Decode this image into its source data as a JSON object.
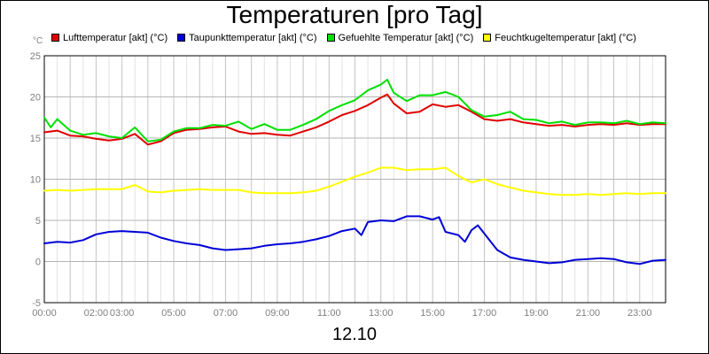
{
  "chart_data": {
    "type": "line",
    "title": "Temperaturen [pro Tag]",
    "xlabel": "12.10",
    "ylabel": "°C",
    "xlim": [
      "00:00",
      "24:00"
    ],
    "ylim": [
      -5,
      25
    ],
    "grid": true,
    "legend_position": "top",
    "x_tick_labels": [
      "00:00",
      "02:00",
      "03:00",
      "05:00",
      "07:00",
      "09:00",
      "11:00",
      "13:00",
      "15:00",
      "17:00",
      "19:00",
      "21:00",
      "23:00"
    ],
    "y_tick_labels": [
      "25",
      "20",
      "15",
      "10",
      "5",
      "0",
      "-5"
    ],
    "x_ticks": [
      0,
      2,
      3,
      5,
      7,
      9,
      11,
      13,
      15,
      17,
      19,
      21,
      23
    ],
    "y_ticks": [
      25,
      20,
      15,
      10,
      5,
      0,
      -5
    ],
    "series": [
      {
        "name": "Lufttemperatur [akt] (°C)",
        "color": "#e00000",
        "x": [
          0,
          0.5,
          1,
          1.5,
          2,
          2.5,
          3,
          3.5,
          4,
          4.5,
          5,
          5.5,
          6,
          6.5,
          7,
          7.5,
          8,
          8.5,
          9,
          9.5,
          10,
          10.5,
          11,
          11.5,
          12,
          12.5,
          13,
          13.25,
          13.5,
          14,
          14.5,
          15,
          15.5,
          16,
          16.5,
          17,
          17.5,
          18,
          18.5,
          19,
          19.5,
          20,
          20.5,
          21,
          21.5,
          22,
          22.5,
          23,
          23.5,
          24
        ],
        "y": [
          15.7,
          15.9,
          15.3,
          15.2,
          14.9,
          14.7,
          14.9,
          15.5,
          14.2,
          14.6,
          15.6,
          16.0,
          16.1,
          16.3,
          16.4,
          15.8,
          15.5,
          15.6,
          15.4,
          15.3,
          15.8,
          16.3,
          17.0,
          17.8,
          18.3,
          19.0,
          19.9,
          20.3,
          19.2,
          18.0,
          18.2,
          19.1,
          18.8,
          19.0,
          18.2,
          17.3,
          17.1,
          17.3,
          16.9,
          16.7,
          16.5,
          16.6,
          16.4,
          16.6,
          16.7,
          16.6,
          16.8,
          16.6,
          16.7,
          16.7
        ]
      },
      {
        "name": "Taupunkttemperatur [akt] (°C)",
        "color": "#0000d8",
        "x": [
          0,
          0.5,
          1,
          1.5,
          2,
          2.5,
          3,
          3.5,
          4,
          4.5,
          5,
          5.5,
          6,
          6.5,
          7,
          7.5,
          8,
          8.5,
          9,
          9.5,
          10,
          10.5,
          11,
          11.5,
          12,
          12.25,
          12.5,
          13,
          13.5,
          14,
          14.5,
          15,
          15.25,
          15.5,
          16,
          16.25,
          16.5,
          16.75,
          17,
          17.25,
          17.5,
          18,
          18.5,
          19,
          19.5,
          20,
          20.5,
          21,
          21.5,
          22,
          22.5,
          23,
          23.5,
          24
        ],
        "y": [
          2.2,
          2.4,
          2.3,
          2.6,
          3.3,
          3.6,
          3.7,
          3.6,
          3.5,
          2.9,
          2.5,
          2.2,
          2.0,
          1.6,
          1.4,
          1.5,
          1.6,
          1.9,
          2.1,
          2.2,
          2.4,
          2.7,
          3.1,
          3.7,
          4.0,
          3.2,
          4.8,
          5.0,
          4.9,
          5.5,
          5.5,
          5.1,
          5.4,
          3.6,
          3.2,
          2.4,
          3.8,
          4.4,
          3.4,
          2.4,
          1.4,
          0.5,
          0.2,
          0.0,
          -0.2,
          -0.1,
          0.2,
          0.3,
          0.4,
          0.3,
          -0.1,
          -0.3,
          0.1,
          0.2
        ]
      },
      {
        "name": "Gefuehlte Temperatur [akt] (°C)",
        "color": "#00e000",
        "x": [
          0,
          0.25,
          0.5,
          1,
          1.5,
          2,
          2.5,
          3,
          3.5,
          4,
          4.5,
          5,
          5.5,
          6,
          6.5,
          7,
          7.5,
          8,
          8.5,
          9,
          9.5,
          10,
          10.5,
          11,
          11.5,
          12,
          12.5,
          13,
          13.25,
          13.5,
          14,
          14.5,
          15,
          15.5,
          16,
          16.5,
          17,
          17.5,
          18,
          18.5,
          19,
          19.5,
          20,
          20.5,
          21,
          21.5,
          22,
          22.5,
          23,
          23.5,
          24
        ],
        "y": [
          17.5,
          16.3,
          17.3,
          15.9,
          15.4,
          15.6,
          15.2,
          15.0,
          16.3,
          14.6,
          14.8,
          15.8,
          16.2,
          16.2,
          16.6,
          16.5,
          17.0,
          16.1,
          16.7,
          16.0,
          16.0,
          16.6,
          17.3,
          18.3,
          19.0,
          19.6,
          20.8,
          21.5,
          22.1,
          20.5,
          19.5,
          20.2,
          20.2,
          20.6,
          20.0,
          18.4,
          17.6,
          17.8,
          18.2,
          17.3,
          17.2,
          16.8,
          17.0,
          16.6,
          16.9,
          16.9,
          16.8,
          17.1,
          16.7,
          16.9,
          16.8
        ]
      },
      {
        "name": "Feuchtkugeltemperatur [akt] (°C)",
        "color": "#ffff00",
        "x": [
          0,
          0.5,
          1,
          1.5,
          2,
          2.5,
          3,
          3.5,
          4,
          4.5,
          5,
          5.5,
          6,
          6.5,
          7,
          7.5,
          8,
          8.5,
          9,
          9.5,
          10,
          10.5,
          11,
          11.5,
          12,
          12.5,
          13,
          13.5,
          14,
          14.5,
          15,
          15.5,
          16,
          16.5,
          17,
          17.5,
          18,
          18.5,
          19,
          19.5,
          20,
          20.5,
          21,
          21.5,
          22,
          22.5,
          23,
          23.5,
          24
        ],
        "y": [
          8.6,
          8.7,
          8.6,
          8.7,
          8.8,
          8.8,
          8.8,
          9.3,
          8.5,
          8.4,
          8.6,
          8.7,
          8.8,
          8.7,
          8.7,
          8.7,
          8.4,
          8.3,
          8.3,
          8.3,
          8.4,
          8.6,
          9.1,
          9.7,
          10.3,
          10.8,
          11.4,
          11.4,
          11.1,
          11.2,
          11.2,
          11.4,
          10.4,
          9.6,
          10.0,
          9.4,
          9.0,
          8.6,
          8.4,
          8.2,
          8.1,
          8.1,
          8.2,
          8.1,
          8.2,
          8.3,
          8.2,
          8.3,
          8.3
        ]
      }
    ]
  }
}
